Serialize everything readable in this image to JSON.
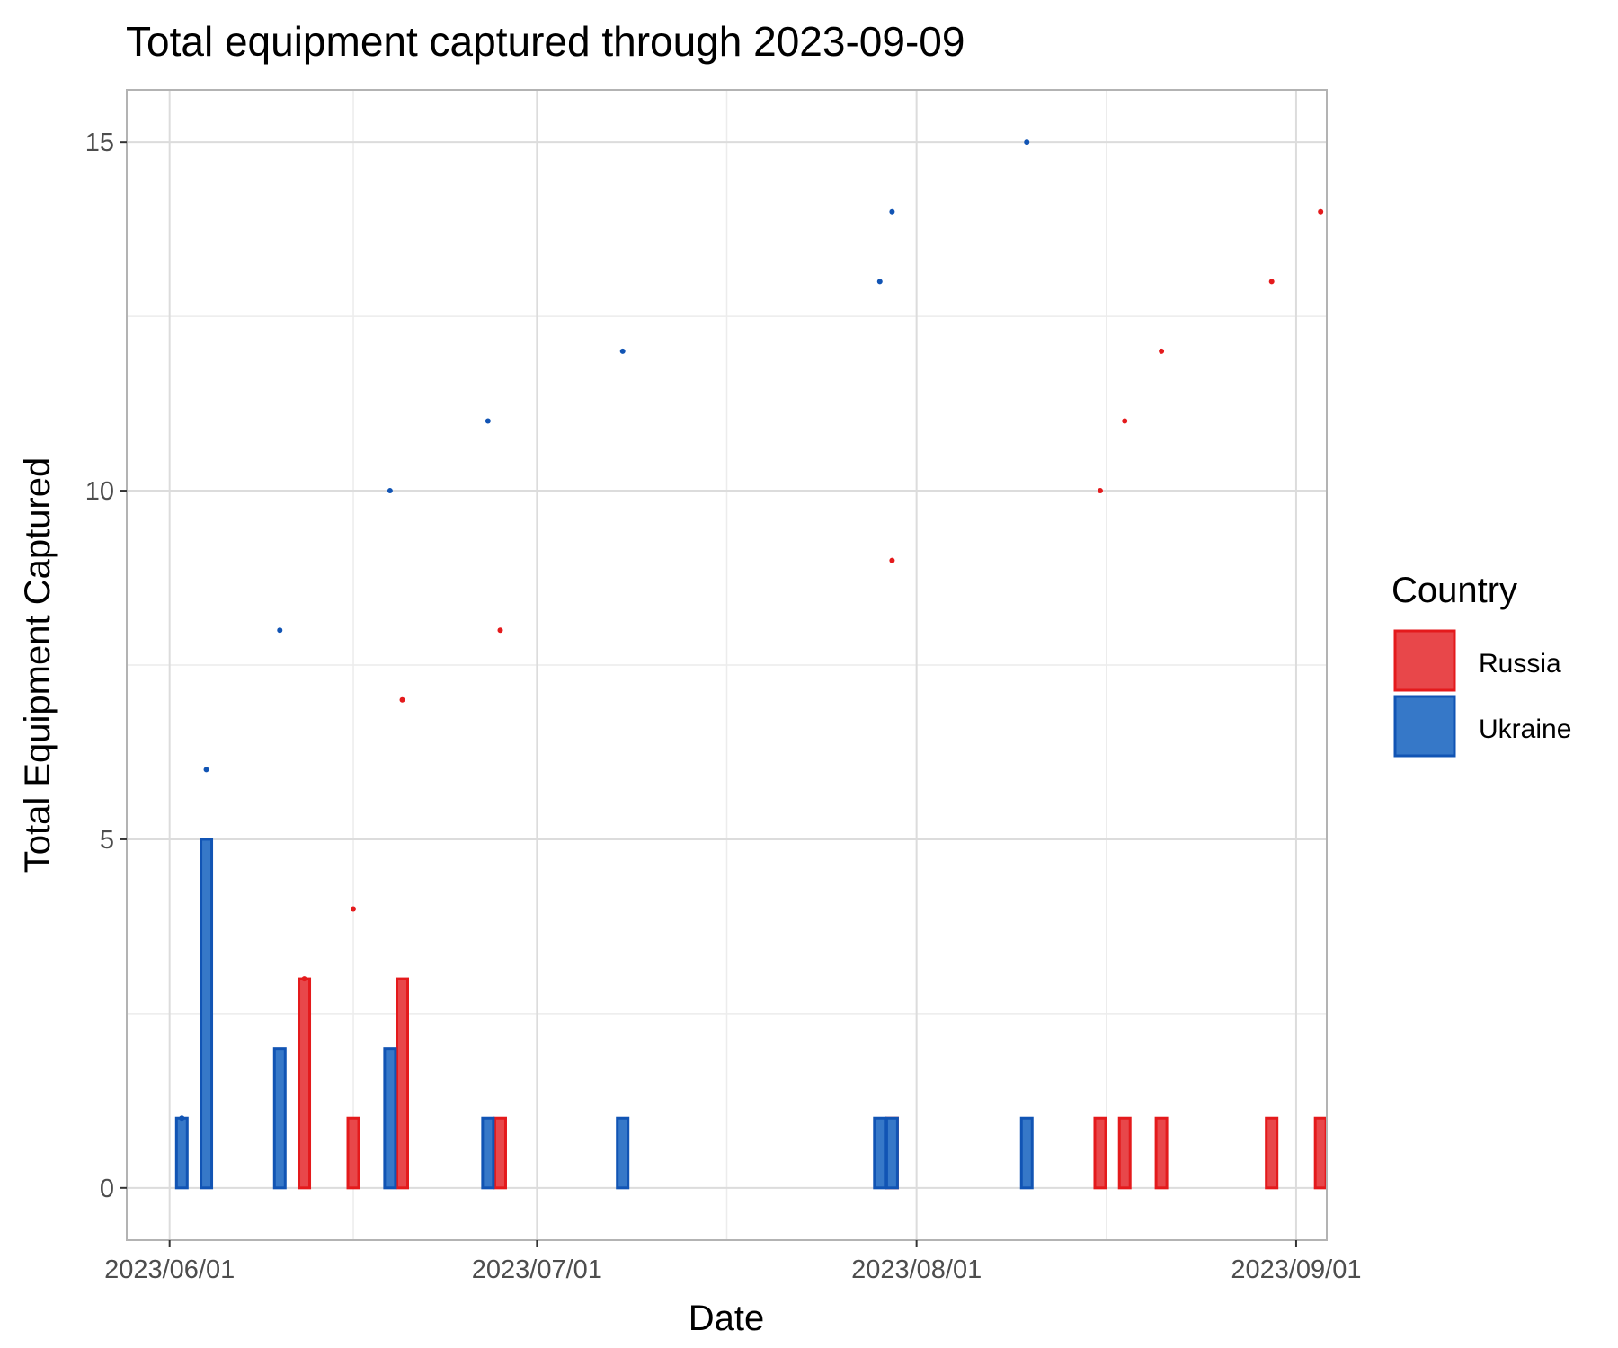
{
  "chart_data": {
    "type": "bar",
    "title": "Total equipment captured through 2023-09-09",
    "xlabel": "Date",
    "ylabel": "Total Equipment Captured",
    "xlim": [
      "2023-05-29",
      "2023-09-03"
    ],
    "ylim": [
      -0.75,
      15.75
    ],
    "x_ticks": [
      "2023-06-01",
      "2023-07-01",
      "2023-08-01",
      "2023-09-01"
    ],
    "x_tick_labels": [
      "2023/06/01",
      "2023/07/01",
      "2023/08/01",
      "2023/09/01"
    ],
    "y_ticks": [
      0,
      5,
      10,
      15
    ],
    "y_tick_labels": [
      "0",
      "5",
      "10",
      "15"
    ],
    "grid": true,
    "legend": {
      "title": "Country",
      "placement": "right"
    },
    "series": [
      {
        "name": "Russia",
        "color": "#E41A1C",
        "fill": "#E8474A",
        "bars": [
          {
            "date": "2023-06-12",
            "value": 3
          },
          {
            "date": "2023-06-16",
            "value": 1
          },
          {
            "date": "2023-06-20",
            "value": 3
          },
          {
            "date": "2023-06-28",
            "value": 1
          },
          {
            "date": "2023-07-30",
            "value": 1
          },
          {
            "date": "2023-08-16",
            "value": 1
          },
          {
            "date": "2023-08-18",
            "value": 1
          },
          {
            "date": "2023-08-21",
            "value": 1
          },
          {
            "date": "2023-08-30",
            "value": 1
          },
          {
            "date": "2023-09-03",
            "value": 1
          }
        ],
        "cumulative": [
          {
            "date": "2023-06-12",
            "value": 3
          },
          {
            "date": "2023-06-16",
            "value": 4
          },
          {
            "date": "2023-06-20",
            "value": 7
          },
          {
            "date": "2023-06-28",
            "value": 8
          },
          {
            "date": "2023-07-30",
            "value": 9
          },
          {
            "date": "2023-08-16",
            "value": 10
          },
          {
            "date": "2023-08-18",
            "value": 11
          },
          {
            "date": "2023-08-21",
            "value": 12
          },
          {
            "date": "2023-08-30",
            "value": 13
          },
          {
            "date": "2023-09-03",
            "value": 14
          }
        ]
      },
      {
        "name": "Ukraine",
        "color": "#1154B4",
        "fill": "#3678C8",
        "bars": [
          {
            "date": "2023-06-02",
            "value": 1
          },
          {
            "date": "2023-06-04",
            "value": 5
          },
          {
            "date": "2023-06-10",
            "value": 2
          },
          {
            "date": "2023-06-19",
            "value": 2
          },
          {
            "date": "2023-06-27",
            "value": 1
          },
          {
            "date": "2023-07-08",
            "value": 1
          },
          {
            "date": "2023-07-29",
            "value": 1
          },
          {
            "date": "2023-07-30",
            "value": 1
          },
          {
            "date": "2023-08-10",
            "value": 1
          }
        ],
        "cumulative": [
          {
            "date": "2023-06-02",
            "value": 1
          },
          {
            "date": "2023-06-04",
            "value": 6
          },
          {
            "date": "2023-06-10",
            "value": 8
          },
          {
            "date": "2023-06-19",
            "value": 10
          },
          {
            "date": "2023-06-27",
            "value": 11
          },
          {
            "date": "2023-07-08",
            "value": 12
          },
          {
            "date": "2023-07-29",
            "value": 13
          },
          {
            "date": "2023-07-30",
            "value": 14
          },
          {
            "date": "2023-08-10",
            "value": 15
          }
        ]
      }
    ]
  }
}
